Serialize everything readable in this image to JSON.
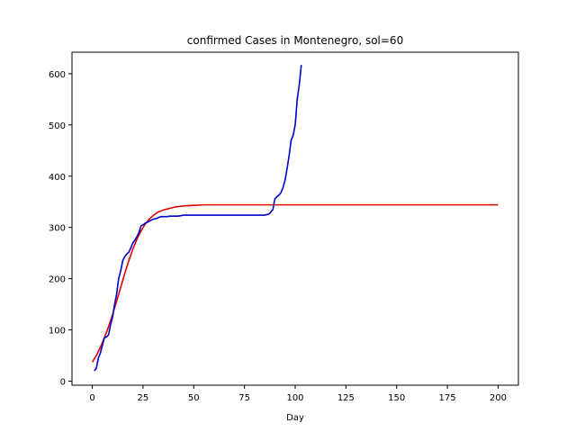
{
  "chart_data": {
    "type": "line",
    "title": "confirmed Cases in Montenegro, sol=60",
    "xlabel": "Day",
    "ylabel": "",
    "xlim": [
      -10,
      210
    ],
    "ylim": [
      -8,
      642
    ],
    "xticks": [
      0,
      25,
      50,
      75,
      100,
      125,
      150,
      175,
      200
    ],
    "yticks": [
      0,
      100,
      200,
      300,
      400,
      500,
      600
    ],
    "grid": false,
    "series": [
      {
        "color": "#e00000",
        "x": [
          0,
          2,
          4,
          6,
          8,
          10,
          12,
          14,
          16,
          18,
          20,
          22,
          24,
          26,
          28,
          30,
          32,
          35,
          38,
          41,
          45,
          50,
          55,
          60,
          70,
          80,
          90,
          100,
          120,
          150,
          175,
          200
        ],
        "values": [
          37,
          50,
          66,
          85,
          106,
          130,
          156,
          183,
          210,
          235,
          258,
          277,
          293,
          306,
          316,
          323,
          329,
          334,
          337,
          340,
          342,
          343,
          344,
          344,
          344,
          344,
          344,
          344,
          344,
          344,
          344,
          344
        ]
      },
      {
        "color": "#0000cc",
        "x": [
          1,
          2,
          3,
          4,
          5,
          6,
          7,
          8,
          9,
          10,
          11,
          12,
          13,
          14,
          15,
          16,
          17,
          18,
          19,
          20,
          21,
          22,
          23,
          24,
          25,
          26,
          27,
          28,
          29,
          30,
          31,
          32,
          33,
          34,
          35,
          36,
          37,
          38,
          40,
          42,
          44,
          45,
          50,
          55,
          60,
          70,
          80,
          85,
          86,
          87,
          88,
          89,
          90,
          91,
          92,
          93,
          94,
          95,
          96,
          97,
          98,
          99,
          100,
          101,
          102,
          103
        ],
        "values": [
          20,
          25,
          45,
          55,
          70,
          85,
          86,
          90,
          110,
          125,
          150,
          170,
          200,
          215,
          235,
          243,
          248,
          252,
          260,
          270,
          275,
          282,
          290,
          303,
          305,
          308,
          310,
          312,
          314,
          316,
          317,
          318,
          320,
          321,
          321,
          321,
          321,
          322,
          322,
          322,
          323,
          324,
          324,
          324,
          324,
          324,
          324,
          324,
          325,
          326,
          330,
          335,
          356,
          360,
          363,
          368,
          378,
          392,
          415,
          440,
          470,
          480,
          500,
          550,
          578,
          617
        ]
      }
    ]
  }
}
